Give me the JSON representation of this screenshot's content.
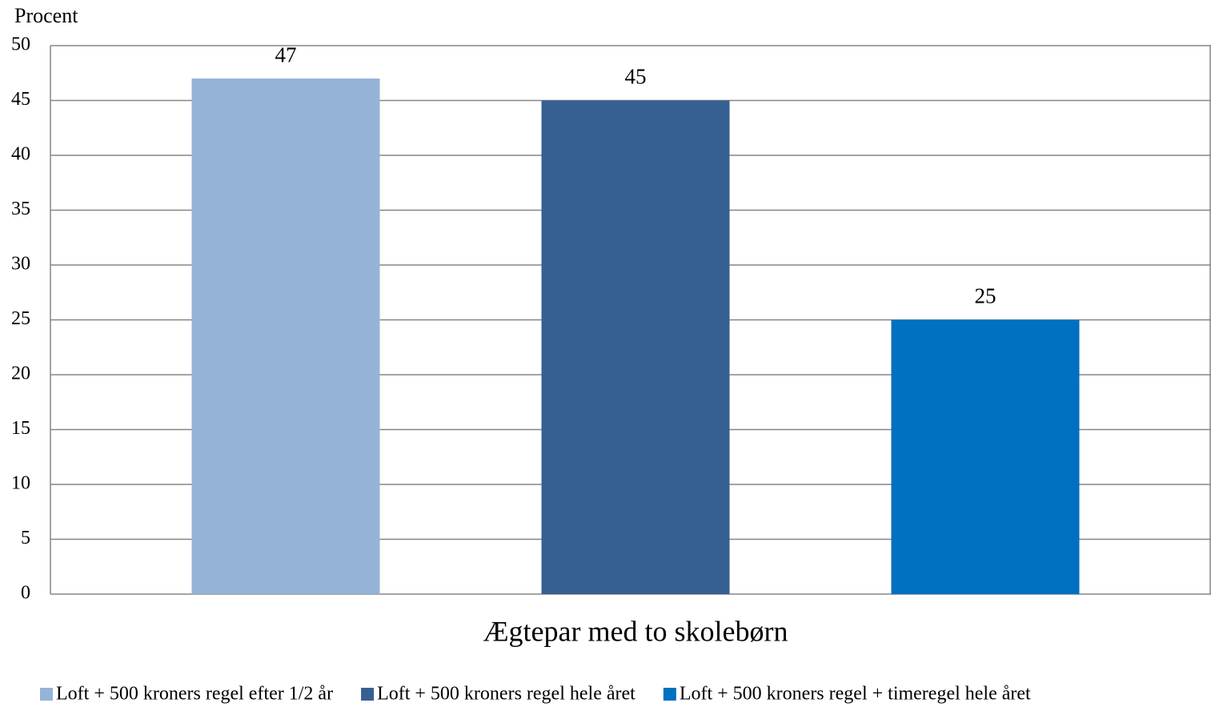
{
  "chart_data": {
    "type": "bar",
    "y_label": "Procent",
    "categories": [
      "Ægtepar med to skolebørn"
    ],
    "series": [
      {
        "name": "Loft + 500 kroners regel efter 1/2 år",
        "color": "#95b3d7",
        "values": [
          47
        ]
      },
      {
        "name": "Loft + 500 kroners regel hele året",
        "color": "#376092",
        "values": [
          45
        ]
      },
      {
        "name": "Loft + 500 kroners regel + timeregel hele året",
        "color": "#0070c0",
        "values": [
          25
        ]
      }
    ],
    "ylim": [
      0,
      50
    ],
    "yticks": [
      0,
      5,
      10,
      15,
      20,
      25,
      30,
      35,
      40,
      45,
      50
    ],
    "grid": true,
    "legend": "bottom"
  }
}
